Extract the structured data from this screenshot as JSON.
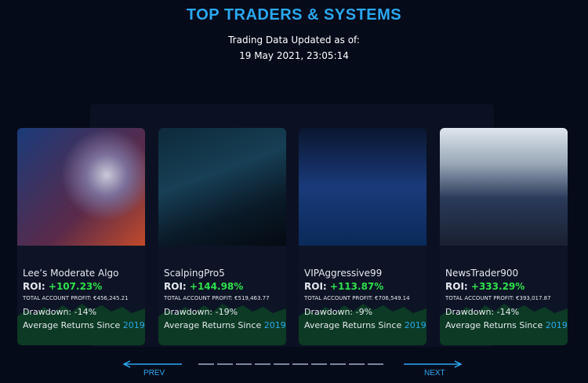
{
  "header": {
    "title": "TOP TRADERS & SYSTEMS",
    "updated_label": "Trading Data Updated as of:",
    "updated_time": "19 May 2021, 23:05:14"
  },
  "cards": [
    {
      "name": "Lee’s Moderate Algo",
      "roi_label": "ROI:",
      "roi": "+107.23%",
      "profit_label": "TOTAL ACCOUNT PROFIT:",
      "profit": "€456,245.21",
      "drawdown": "Drawdown: -14%",
      "returns_label": "Average Returns Since",
      "returns_year": "2019"
    },
    {
      "name": "ScalpingPro5",
      "roi_label": "ROI:",
      "roi": "+144.98%",
      "profit_label": "TOTAL ACCOUNT PROFIT:",
      "profit": "€519,463.77",
      "drawdown": "Drawdown: -19%",
      "returns_label": "Average Returns Since",
      "returns_year": "2019"
    },
    {
      "name": "VIPAggressive99",
      "roi_label": "ROI:",
      "roi": "+113.87%",
      "profit_label": "TOTAL ACCOUNT PROFIT:",
      "profit": "€706,549.14",
      "drawdown": "Drawdown: -9%",
      "returns_label": "Average Returns Since",
      "returns_year": "2019"
    },
    {
      "name": "NewsTrader900",
      "roi_label": "ROI:",
      "roi": "+333.29%",
      "profit_label": "TOTAL ACCOUNT PROFIT:",
      "profit": "€393,017.87",
      "drawdown": "Drawdown: -14%",
      "returns_label": "Average Returns Since",
      "returns_year": "2019"
    }
  ],
  "nav": {
    "prev": "PREV",
    "next": "NEXT"
  }
}
